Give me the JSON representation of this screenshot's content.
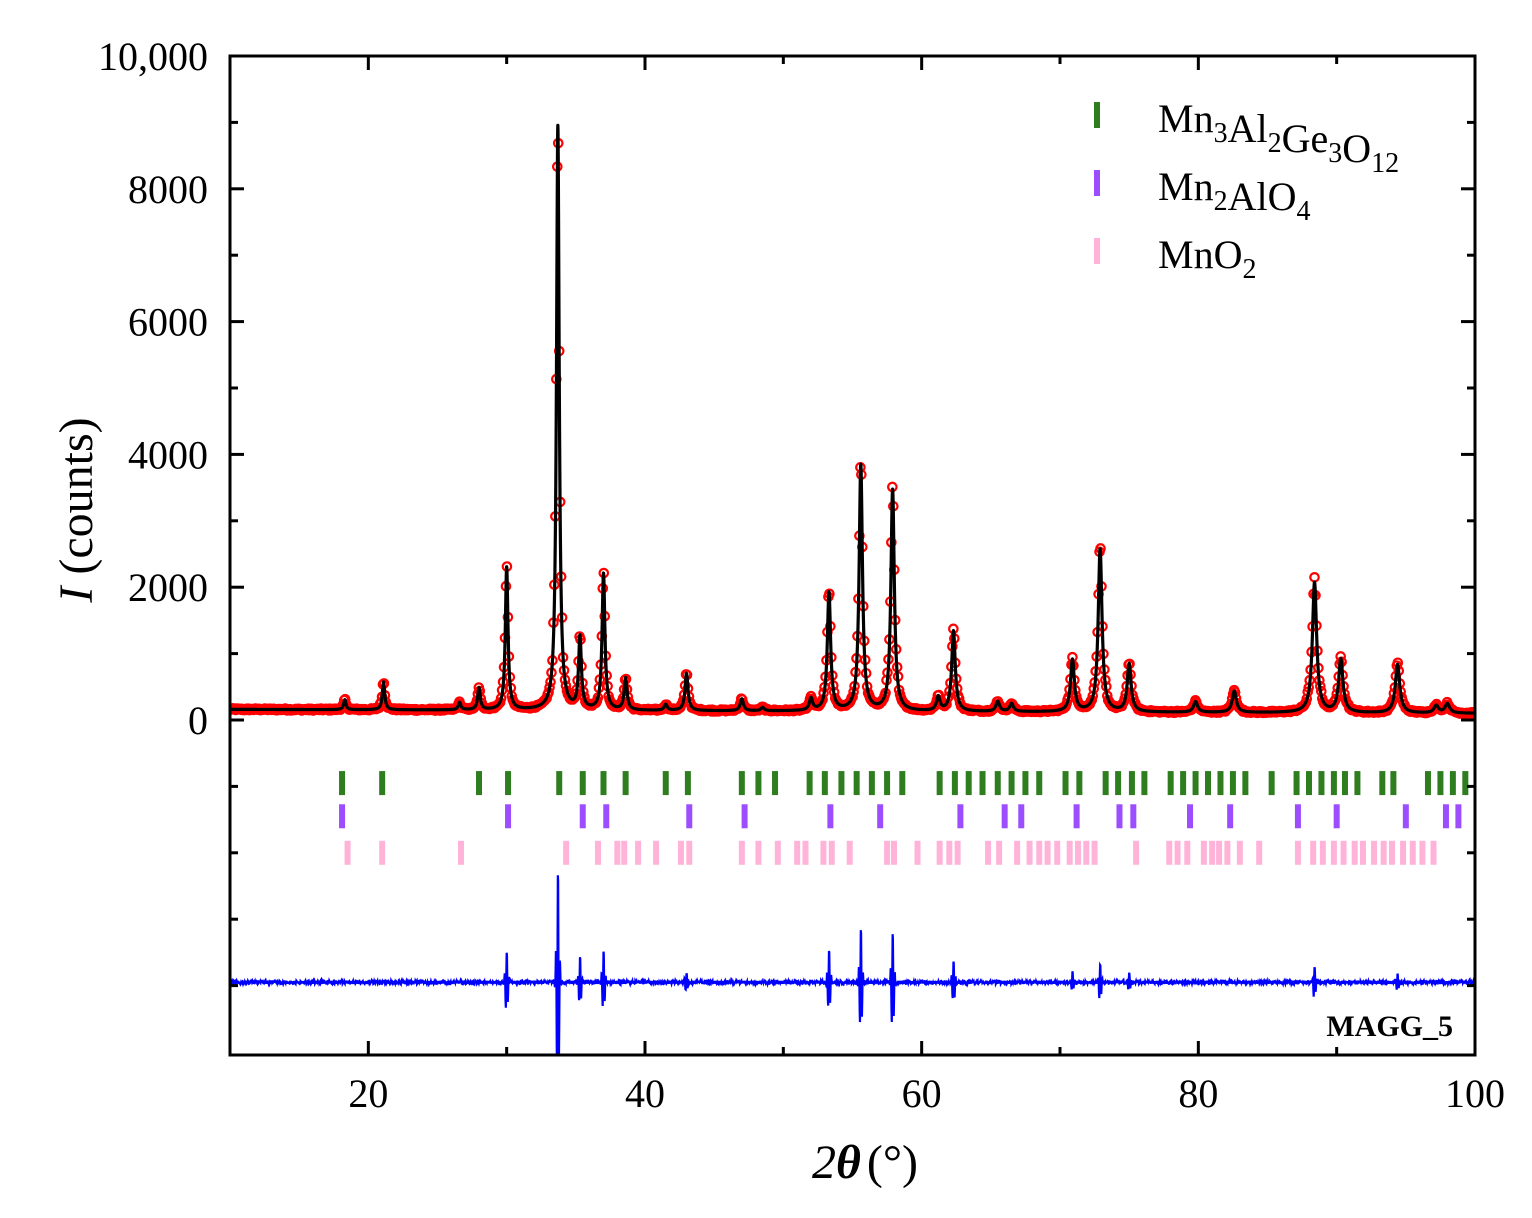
{
  "chart_data": {
    "type": "line",
    "sample_label": "MAGG_5",
    "xlabel": {
      "prefix": "2",
      "theta": "θ",
      "unit": "(°)"
    },
    "ylabel": {
      "italic": "I",
      "rest": "(counts)"
    },
    "xlim": [
      10,
      100
    ],
    "ylim": [
      -5000,
      10000
    ],
    "x_ticks": [
      {
        "value": 20,
        "label": "20"
      },
      {
        "value": 40,
        "label": "40"
      },
      {
        "value": 60,
        "label": "60"
      },
      {
        "value": 80,
        "label": "80"
      },
      {
        "value": 100,
        "label": "100"
      }
    ],
    "y_ticks": [
      {
        "value": 0,
        "label": "0"
      },
      {
        "value": 2000,
        "label": "2000"
      },
      {
        "value": 4000,
        "label": "4000"
      },
      {
        "value": 6000,
        "label": "6000"
      },
      {
        "value": 8000,
        "label": "8000"
      },
      {
        "value": 10000,
        "label": "10,000"
      }
    ],
    "y_minor_ticks": [
      1000,
      3000,
      5000,
      7000,
      9000,
      -1000,
      -2000,
      -3000,
      -4000
    ],
    "legend": [
      {
        "base": "Mn",
        "parts": [
          {
            "t": "Mn",
            "sub": "3"
          },
          {
            "t": "Al",
            "sub": "2"
          },
          {
            "t": "Ge",
            "sub": "3"
          },
          {
            "t": "O",
            "sub": "12"
          }
        ],
        "color": "#2e7d1e"
      },
      {
        "base": "Mn",
        "parts": [
          {
            "t": "Mn",
            "sub": "2"
          },
          {
            "t": "AlO",
            "sub": "4"
          }
        ],
        "color": "#9b4dff"
      },
      {
        "base": "Mn",
        "parts": [
          {
            "t": "MnO",
            "sub": "2"
          }
        ],
        "color": "#ffb3d9"
      }
    ],
    "colors": {
      "observed": "#ff0000",
      "calculated": "#000000",
      "difference": "#0000ff",
      "garnet": "#2e7d1e",
      "spinel": "#9b4dff",
      "mno2": "#ffb3d9"
    },
    "background": {
      "start": 160,
      "end": 100
    },
    "peaks": [
      {
        "x": 18.3,
        "h": 150
      },
      {
        "x": 21.1,
        "h": 420
      },
      {
        "x": 26.6,
        "h": 110
      },
      {
        "x": 28.0,
        "h": 330
      },
      {
        "x": 30.0,
        "h": 2150
      },
      {
        "x": 33.7,
        "h": 8800
      },
      {
        "x": 35.3,
        "h": 1080
      },
      {
        "x": 37.0,
        "h": 2050
      },
      {
        "x": 38.6,
        "h": 480
      },
      {
        "x": 41.5,
        "h": 90
      },
      {
        "x": 43.0,
        "h": 560
      },
      {
        "x": 47.0,
        "h": 180
      },
      {
        "x": 48.5,
        "h": 50
      },
      {
        "x": 52.0,
        "h": 180
      },
      {
        "x": 53.3,
        "h": 1780
      },
      {
        "x": 55.6,
        "h": 3700
      },
      {
        "x": 57.9,
        "h": 3330
      },
      {
        "x": 61.2,
        "h": 210
      },
      {
        "x": 62.3,
        "h": 1210
      },
      {
        "x": 65.5,
        "h": 150
      },
      {
        "x": 66.5,
        "h": 120
      },
      {
        "x": 70.9,
        "h": 780
      },
      {
        "x": 72.9,
        "h": 2450
      },
      {
        "x": 75.0,
        "h": 720
      },
      {
        "x": 79.8,
        "h": 160
      },
      {
        "x": 82.6,
        "h": 320
      },
      {
        "x": 88.4,
        "h": 1960
      },
      {
        "x": 90.3,
        "h": 800
      },
      {
        "x": 94.4,
        "h": 730
      },
      {
        "x": 97.2,
        "h": 110
      },
      {
        "x": 98.0,
        "h": 140
      }
    ],
    "difference_offset": -3950,
    "difference_features": [
      {
        "x": 30.0,
        "amp": 500
      },
      {
        "x": 33.7,
        "amp": 1750
      },
      {
        "x": 35.3,
        "amp": 380
      },
      {
        "x": 37.0,
        "amp": 480
      },
      {
        "x": 43.0,
        "amp": 160
      },
      {
        "x": 53.3,
        "amp": 500
      },
      {
        "x": 55.6,
        "amp": 820
      },
      {
        "x": 57.9,
        "amp": 780
      },
      {
        "x": 62.3,
        "amp": 350
      },
      {
        "x": 70.9,
        "amp": 160
      },
      {
        "x": 72.9,
        "amp": 300
      },
      {
        "x": 75.0,
        "amp": 160
      },
      {
        "x": 88.4,
        "amp": 260
      },
      {
        "x": 94.4,
        "amp": 130
      }
    ],
    "reflections": {
      "garnet": {
        "row_center": -950,
        "positions": [
          18.1,
          21.0,
          28.0,
          30.1,
          33.8,
          35.5,
          37.0,
          38.6,
          41.5,
          43.1,
          47.0,
          48.2,
          49.4,
          51.9,
          53.0,
          54.2,
          55.3,
          56.4,
          57.5,
          58.6,
          61.3,
          62.4,
          63.4,
          64.4,
          65.5,
          66.5,
          67.5,
          68.5,
          70.4,
          71.4,
          73.3,
          74.2,
          75.2,
          76.1,
          78.0,
          78.9,
          79.8,
          80.7,
          81.6,
          82.5,
          83.4,
          85.3,
          87.1,
          88.0,
          88.9,
          89.8,
          90.6,
          91.5,
          93.3,
          94.1,
          96.6,
          97.5,
          98.4,
          99.3
        ]
      },
      "spinel": {
        "row_center": -1450,
        "positions": [
          18.1,
          30.1,
          35.5,
          37.2,
          43.2,
          47.2,
          53.4,
          57.0,
          62.8,
          66.0,
          67.2,
          71.2,
          74.3,
          75.3,
          79.4,
          82.3,
          87.2,
          90.0,
          95.0,
          97.9,
          98.8
        ]
      },
      "mno2": {
        "row_center": -2000,
        "positions": [
          18.5,
          21.0,
          26.7,
          34.3,
          36.6,
          38.0,
          38.5,
          39.5,
          40.8,
          42.6,
          43.2,
          47.0,
          48.2,
          49.6,
          51.0,
          51.6,
          52.9,
          53.5,
          54.8,
          57.5,
          58.0,
          59.7,
          61.3,
          62.0,
          62.6,
          64.8,
          65.6,
          66.9,
          67.8,
          68.5,
          69.1,
          69.8,
          70.7,
          71.3,
          71.9,
          72.5,
          75.5,
          77.9,
          78.5,
          79.2,
          80.4,
          81.0,
          81.5,
          82.1,
          83.0,
          84.4,
          87.2,
          88.3,
          89.0,
          89.8,
          90.5,
          91.3,
          91.9,
          92.7,
          93.4,
          94.0,
          94.8,
          95.5,
          96.2,
          97.0
        ]
      }
    }
  }
}
